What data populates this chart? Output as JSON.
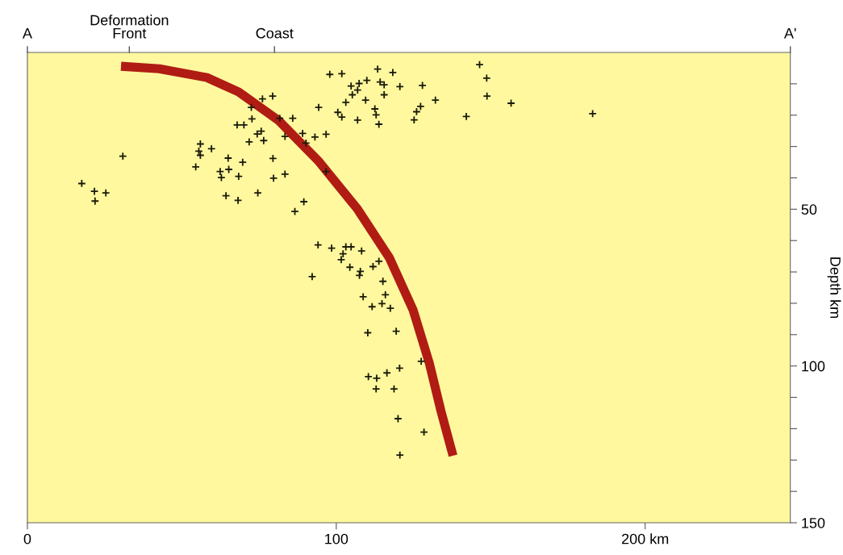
{
  "chart_data": {
    "type": "scatter",
    "ylabel": "Depth km",
    "xlim": [
      0,
      247
    ],
    "xticks": [
      0,
      100,
      {
        "value": 200,
        "label": "200 km"
      }
    ],
    "ylim": [
      150,
      0
    ],
    "yticks": [
      {
        "value": 10,
        "label": null
      },
      {
        "value": 20,
        "label": null
      },
      {
        "value": 30,
        "label": null
      },
      {
        "value": 40,
        "label": null
      },
      50,
      {
        "value": 60,
        "label": null
      },
      {
        "value": 70,
        "label": null
      },
      {
        "value": 80,
        "label": null
      },
      {
        "value": 90,
        "label": null
      },
      100,
      {
        "value": 110,
        "label": null
      },
      {
        "value": 120,
        "label": null
      },
      {
        "value": 130,
        "label": null
      },
      {
        "value": 140,
        "label": null
      },
      150
    ],
    "ref_lines": [
      {
        "axis": "x",
        "value": 0,
        "label": "A"
      },
      {
        "axis": "x",
        "value": 33,
        "label": "Deformation\nFront"
      },
      {
        "axis": "x",
        "value": 80,
        "label": "Coast"
      },
      {
        "axis": "x",
        "value": 247,
        "label": "A'"
      }
    ],
    "grid": false,
    "marker": "cross",
    "series": [
      {
        "type": "line",
        "color": "#b01c14",
        "marker": "none",
        "x": [
          30.3,
          42.7,
          58.1,
          68.4,
          81.2,
          94.1,
          106.9,
          117.2,
          124.9,
          130.1,
          133.9,
          137.8
        ],
        "values": [
          4.4,
          5.2,
          8.0,
          12.6,
          21.6,
          34.5,
          50.0,
          65.5,
          82.2,
          99.0,
          114.4,
          128.6
        ]
      },
      {
        "color": "#1a1a0a",
        "x": [
          30.9,
          17.6,
          21.7,
          21.9,
          25.4,
          54.5,
          56.0,
          55.5,
          56.0,
          59.6,
          65.0,
          69.7,
          62.4,
          65.2,
          62.8,
          68.4,
          64.3,
          68.2,
          74.6,
          79.5,
          79.7,
          83.4,
          86.6,
          89.5,
          67.9,
          70.1,
          72.7,
          72.5,
          76.1,
          79.4,
          74.4,
          75.7,
          71.8,
          76.5,
          83.4,
          85.9,
          89.1,
          93.1,
          96.7,
          94.3,
          97.9,
          100.5,
          81.7,
          90.2,
          96.7,
          101.8,
          113.4,
          118.3,
          109.9,
          107.4,
          104.8,
          114.2,
          115.5,
          120.6,
          127.9,
          105.2,
          106.9,
          103.1,
          109.5,
          115.5,
          101.8,
          106.9,
          112.5,
          112.9,
          113.8,
          127.3,
          126.0,
          125.2,
          132.1,
          142.1,
          146.4,
          148.7,
          148.8,
          156.6,
          183.0,
          94.1,
          98.5,
          103.1,
          104.8,
          102.2,
          101.6,
          108.2,
          104.4,
          92.2,
          107.8,
          107.5,
          111.9,
          113.8,
          115.1,
          108.7,
          115.9,
          111.6,
          114.8,
          117.5,
          110.2,
          119.4,
          127.5,
          120.5,
          110.4,
          113.1,
          116.4,
          112.9,
          118.7,
          120.0,
          128.4,
          120.6
        ],
        "values": [
          33.1,
          41.8,
          44.3,
          47.4,
          44.8,
          36.5,
          29.2,
          31.5,
          32.8,
          30.7,
          33.7,
          35.0,
          38.0,
          37.3,
          39.9,
          39.5,
          45.7,
          47.2,
          44.8,
          33.8,
          40.1,
          38.8,
          50.7,
          47.6,
          23.1,
          23.1,
          21.2,
          17.5,
          14.8,
          13.9,
          26.0,
          25.1,
          28.5,
          28.1,
          26.8,
          21.0,
          25.8,
          27.0,
          26.1,
          17.5,
          7.0,
          19.1,
          21.0,
          28.9,
          38.0,
          6.8,
          5.3,
          6.4,
          8.9,
          9.9,
          10.7,
          9.4,
          10.3,
          10.9,
          10.5,
          13.5,
          12.0,
          15.9,
          15.2,
          13.5,
          20.6,
          21.6,
          18.0,
          19.9,
          22.9,
          17.2,
          18.9,
          21.5,
          15.2,
          20.4,
          3.9,
          8.2,
          13.9,
          16.2,
          19.5,
          61.4,
          62.4,
          62.0,
          62.0,
          64.2,
          66.1,
          63.3,
          68.5,
          71.5,
          69.8,
          71.1,
          68.3,
          66.6,
          73.0,
          77.9,
          77.3,
          81.1,
          80.1,
          81.6,
          89.4,
          88.9,
          98.5,
          100.7,
          103.4,
          103.9,
          102.2,
          107.3,
          107.3,
          116.8,
          121.1,
          128.4
        ]
      }
    ]
  }
}
